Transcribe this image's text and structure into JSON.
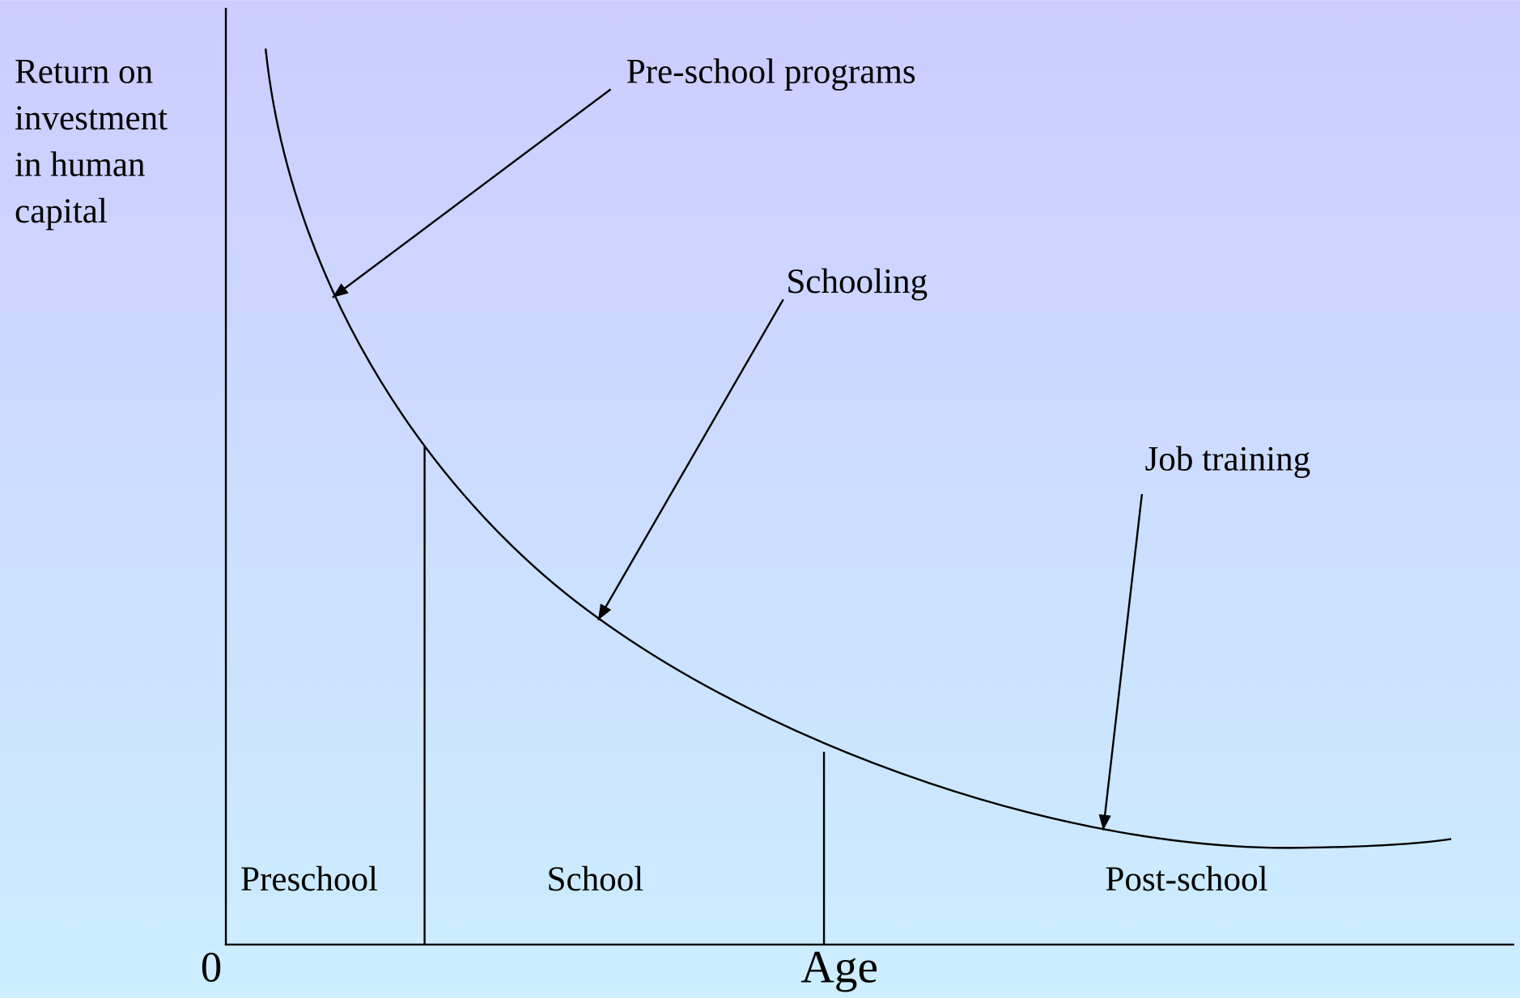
{
  "y_axis_label": [
    "Return on",
    "investment",
    "in human",
    "capital"
  ],
  "origin": "0",
  "x_axis_label": "Age",
  "annotations": [
    "Pre-school programs",
    "Schooling",
    "Job training"
  ],
  "regions": [
    "Preschool",
    "School",
    "Post-school"
  ]
}
